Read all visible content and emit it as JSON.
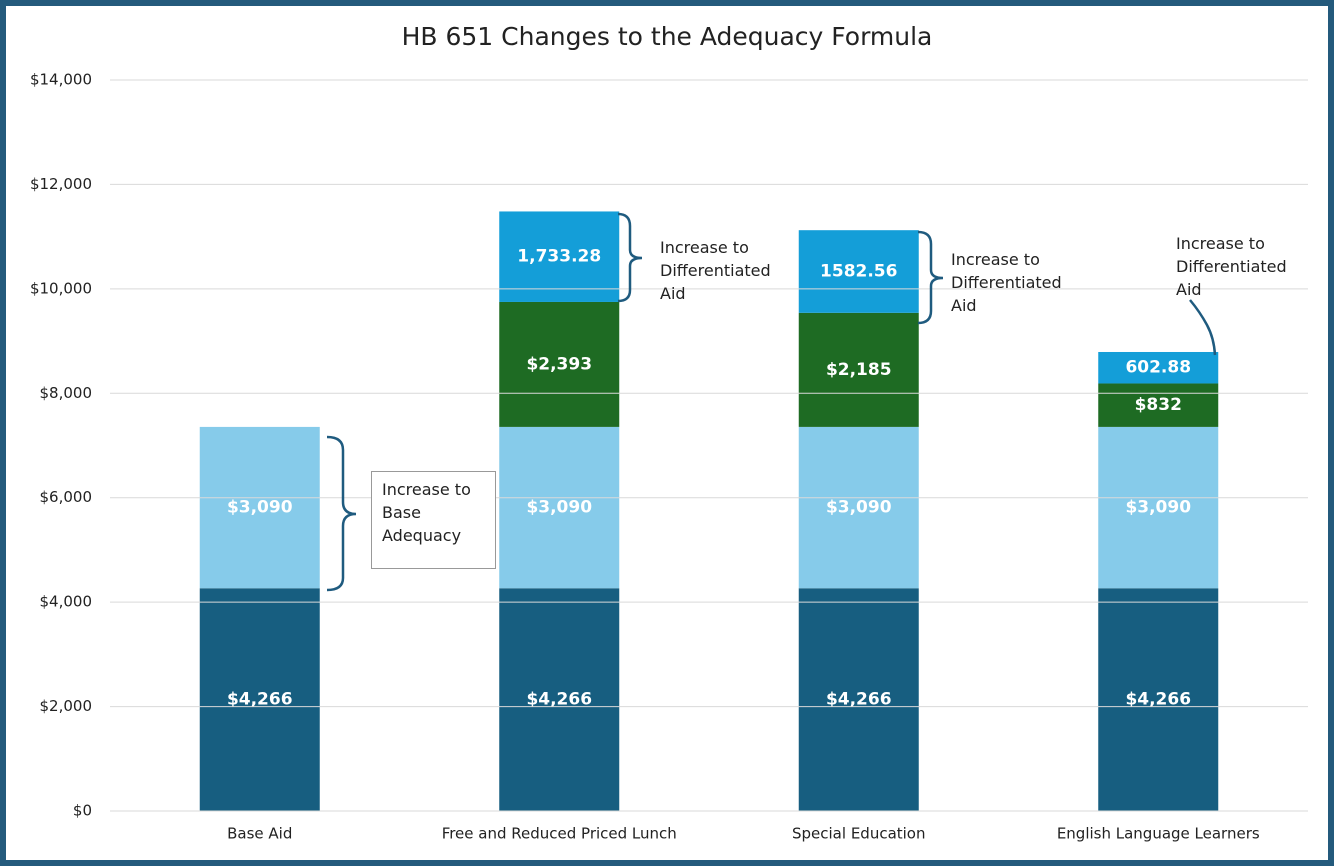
{
  "chart_data": {
    "type": "stacked_bar",
    "title": "HB 651 Changes to the Adequacy Formula",
    "categories": [
      "Base Aid",
      "Free and Reduced Priced Lunch",
      "Special Education",
      "English Language Learners"
    ],
    "series": [
      {
        "color": "#175e80",
        "values": [
          4266,
          4266,
          4266,
          4266
        ],
        "value_labels": [
          "$4,266",
          "$4,266",
          "$4,266",
          "$4,266"
        ]
      },
      {
        "color": "#86cbea",
        "values": [
          3090,
          3090,
          3090,
          3090
        ],
        "value_labels": [
          "$3,090",
          "$3,090",
          "$3,090",
          "$3,090"
        ]
      },
      {
        "color": "#1e6b23",
        "values": [
          null,
          2393,
          2185,
          832
        ],
        "value_labels": [
          null,
          "$2,393",
          "$2,185",
          "$832"
        ]
      },
      {
        "color": "#149ed8",
        "values": [
          null,
          1733.28,
          1582.56,
          602.88
        ],
        "value_labels": [
          null,
          "1,733.28",
          "1582.56",
          "602.88"
        ]
      }
    ],
    "ylim": [
      0,
      14000
    ],
    "yticks": [
      {
        "value": 0,
        "label": "$0"
      },
      {
        "value": 2000,
        "label": "$2,000"
      },
      {
        "value": 4000,
        "label": "$4,000"
      },
      {
        "value": 6000,
        "label": "$6,000"
      },
      {
        "value": 8000,
        "label": "$8,000"
      },
      {
        "value": 10000,
        "label": "$10,000"
      },
      {
        "value": 12000,
        "label": "$12,000"
      },
      {
        "value": 14000,
        "label": "$14,000"
      }
    ],
    "grid": true,
    "annotations": [
      "Increase to Base Adequacy",
      "Increase to Differentiated Aid",
      "Increase to Differentiated Aid",
      "Increase to Differentiated Aid"
    ]
  }
}
